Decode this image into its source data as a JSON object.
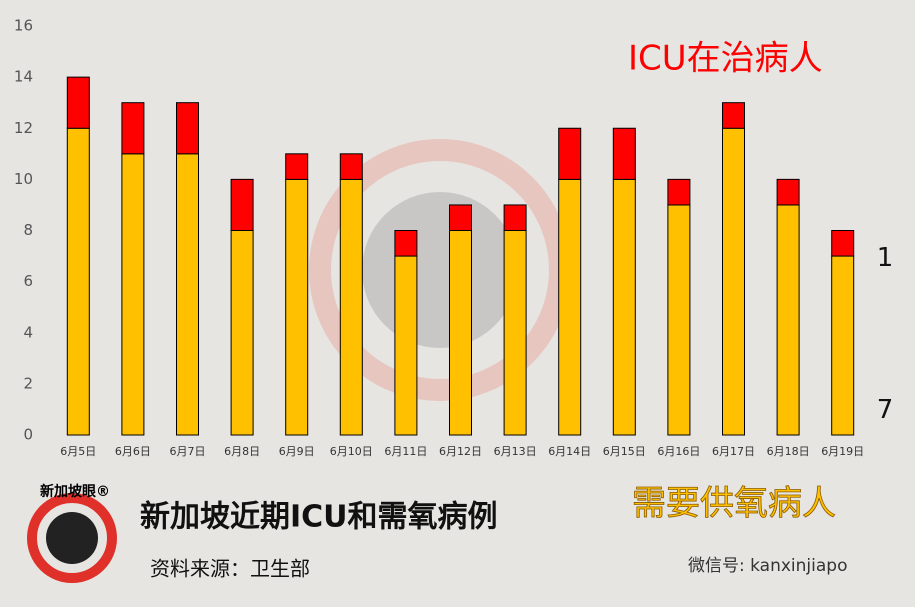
{
  "chart_data": {
    "type": "stacked_bar",
    "title": "新加坡近期ICU和需氧病例",
    "source": "资料来源：卫生部",
    "logo": "新加坡眼®",
    "wechat": "微信号: kanxinjiapo",
    "categories": [
      "6月5日",
      "6月6日",
      "6月7日",
      "6月8日",
      "6月9日",
      "6月10日",
      "6月11日",
      "6月12日",
      "6月13日",
      "6月14日",
      "6月15日",
      "6月16日",
      "6月17日",
      "6月18日",
      "6月19日"
    ],
    "series": [
      {
        "name": "需要供氧病人",
        "color": "#ffc000",
        "values": [
          12,
          11,
          11,
          8,
          10,
          10,
          7,
          8,
          8,
          10,
          10,
          9,
          12,
          9,
          7
        ],
        "value_labels": [
          null,
          null,
          null,
          null,
          null,
          null,
          null,
          null,
          null,
          null,
          null,
          null,
          null,
          null,
          "7"
        ]
      },
      {
        "name": "ICU在治病人",
        "color": "#ff0000",
        "values": [
          2,
          2,
          2,
          2,
          1,
          1,
          1,
          1,
          1,
          2,
          2,
          1,
          1,
          1,
          1
        ],
        "value_labels": [
          null,
          null,
          null,
          null,
          null,
          null,
          null,
          null,
          null,
          null,
          null,
          null,
          null,
          null,
          "1"
        ]
      }
    ],
    "ylim": [
      0,
      16
    ],
    "yticks": [
      0,
      2,
      4,
      6,
      8,
      10,
      12,
      14,
      16
    ],
    "grid": false
  }
}
